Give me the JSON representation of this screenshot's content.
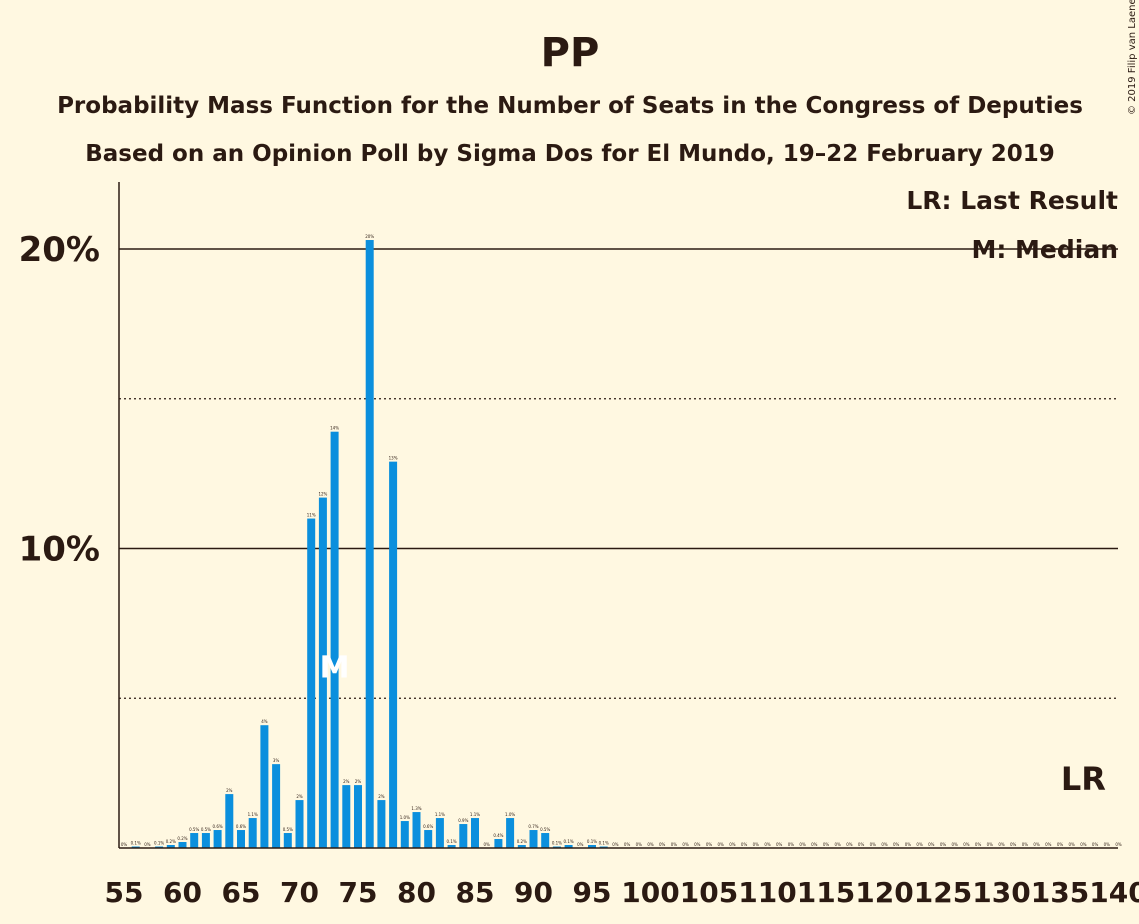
{
  "title": "PP",
  "subtitle_1": "Probability Mass Function for the Number of Seats in the Congress of Deputies",
  "subtitle_2": "Based on an Opinion Poll by Sigma Dos for El Mundo, 19–22 February 2019",
  "copyright": "© 2019 Filip van Laenen",
  "legend": {
    "last_result": "LR: Last Result",
    "median": "M: Median"
  },
  "colors": {
    "background": "#FFF8E1",
    "bar": "#0B8FDD",
    "text": "#2b1a12"
  },
  "chart_data": {
    "type": "bar",
    "xlim": [
      55,
      140
    ],
    "ylim": [
      0,
      22
    ],
    "x_ticks": [
      "55",
      "60",
      "65",
      "70",
      "75",
      "80",
      "85",
      "90",
      "95",
      "100",
      "105",
      "110",
      "115",
      "120",
      "125",
      "130",
      "135",
      "140"
    ],
    "y_ticks": [
      {
        "value": 10,
        "label": "10%",
        "style": "solid"
      },
      {
        "value": 20,
        "label": "20%",
        "style": "solid"
      }
    ],
    "y_gridlines_dotted": [
      5,
      15
    ],
    "median_seat": 73,
    "median_marker": "M",
    "last_result_seat": 137,
    "last_result_marker": "LR",
    "bars": [
      {
        "x": 55,
        "value": 0.0,
        "label": "0%"
      },
      {
        "x": 56,
        "value": 0.05,
        "label": "0.1%"
      },
      {
        "x": 57,
        "value": 0.0,
        "label": "0%"
      },
      {
        "x": 58,
        "value": 0.05,
        "label": "0.1%"
      },
      {
        "x": 59,
        "value": 0.1,
        "label": "0.2%"
      },
      {
        "x": 60,
        "value": 0.2,
        "label": "0.2%"
      },
      {
        "x": 61,
        "value": 0.5,
        "label": "0.5%"
      },
      {
        "x": 62,
        "value": 0.5,
        "label": "0.5%"
      },
      {
        "x": 63,
        "value": 0.6,
        "label": "0.6%"
      },
      {
        "x": 64,
        "value": 1.8,
        "label": "2%"
      },
      {
        "x": 65,
        "value": 0.6,
        "label": "0.6%"
      },
      {
        "x": 66,
        "value": 1.0,
        "label": "1.1%"
      },
      {
        "x": 67,
        "value": 4.1,
        "label": "4%"
      },
      {
        "x": 68,
        "value": 2.8,
        "label": "3%"
      },
      {
        "x": 69,
        "value": 0.5,
        "label": "0.5%"
      },
      {
        "x": 70,
        "value": 1.6,
        "label": "2%"
      },
      {
        "x": 71,
        "value": 11.0,
        "label": "11%"
      },
      {
        "x": 72,
        "value": 11.7,
        "label": "12%"
      },
      {
        "x": 73,
        "value": 13.9,
        "label": "14%"
      },
      {
        "x": 74,
        "value": 2.1,
        "label": "2%"
      },
      {
        "x": 75,
        "value": 2.1,
        "label": "2%"
      },
      {
        "x": 76,
        "value": 20.3,
        "label": "20%"
      },
      {
        "x": 77,
        "value": 1.6,
        "label": "2%"
      },
      {
        "x": 78,
        "value": 12.9,
        "label": "13%"
      },
      {
        "x": 79,
        "value": 0.9,
        "label": "1.0%"
      },
      {
        "x": 80,
        "value": 1.2,
        "label": "1.3%"
      },
      {
        "x": 81,
        "value": 0.6,
        "label": "0.6%"
      },
      {
        "x": 82,
        "value": 1.0,
        "label": "1.1%"
      },
      {
        "x": 83,
        "value": 0.1,
        "label": "0.1%"
      },
      {
        "x": 84,
        "value": 0.8,
        "label": "0.9%"
      },
      {
        "x": 85,
        "value": 1.0,
        "label": "1.1%"
      },
      {
        "x": 86,
        "value": 0.0,
        "label": "0%"
      },
      {
        "x": 87,
        "value": 0.3,
        "label": "0.4%"
      },
      {
        "x": 88,
        "value": 1.0,
        "label": "1.0%"
      },
      {
        "x": 89,
        "value": 0.1,
        "label": "0.2%"
      },
      {
        "x": 90,
        "value": 0.6,
        "label": "0.7%"
      },
      {
        "x": 91,
        "value": 0.5,
        "label": "0.5%"
      },
      {
        "x": 92,
        "value": 0.05,
        "label": "0.1%"
      },
      {
        "x": 93,
        "value": 0.1,
        "label": "0.1%"
      },
      {
        "x": 94,
        "value": 0.0,
        "label": "0%"
      },
      {
        "x": 95,
        "value": 0.1,
        "label": "0.1%"
      },
      {
        "x": 96,
        "value": 0.05,
        "label": "0.1%"
      },
      {
        "x": 97,
        "value": 0.0,
        "label": "0%"
      },
      {
        "x": 98,
        "value": 0.0,
        "label": "0%"
      },
      {
        "x": 99,
        "value": 0.0,
        "label": "0%"
      },
      {
        "x": 100,
        "value": 0.0,
        "label": "0%"
      },
      {
        "x": 101,
        "value": 0.0,
        "label": "0%"
      },
      {
        "x": 102,
        "value": 0.0,
        "label": "0%"
      },
      {
        "x": 103,
        "value": 0.0,
        "label": "0%"
      },
      {
        "x": 104,
        "value": 0.0,
        "label": "0%"
      },
      {
        "x": 105,
        "value": 0.0,
        "label": "0%"
      },
      {
        "x": 106,
        "value": 0.0,
        "label": "0%"
      },
      {
        "x": 107,
        "value": 0.0,
        "label": "0%"
      },
      {
        "x": 108,
        "value": 0.0,
        "label": "0%"
      },
      {
        "x": 109,
        "value": 0.0,
        "label": "0%"
      },
      {
        "x": 110,
        "value": 0.0,
        "label": "0%"
      },
      {
        "x": 111,
        "value": 0.0,
        "label": "0%"
      },
      {
        "x": 112,
        "value": 0.0,
        "label": "0%"
      },
      {
        "x": 113,
        "value": 0.0,
        "label": "0%"
      },
      {
        "x": 114,
        "value": 0.0,
        "label": "0%"
      },
      {
        "x": 115,
        "value": 0.0,
        "label": "0%"
      },
      {
        "x": 116,
        "value": 0.0,
        "label": "0%"
      },
      {
        "x": 117,
        "value": 0.0,
        "label": "0%"
      },
      {
        "x": 118,
        "value": 0.0,
        "label": "0%"
      },
      {
        "x": 119,
        "value": 0.0,
        "label": "0%"
      },
      {
        "x": 120,
        "value": 0.0,
        "label": "0%"
      },
      {
        "x": 121,
        "value": 0.0,
        "label": "0%"
      },
      {
        "x": 122,
        "value": 0.0,
        "label": "0%"
      },
      {
        "x": 123,
        "value": 0.0,
        "label": "0%"
      },
      {
        "x": 124,
        "value": 0.0,
        "label": "0%"
      },
      {
        "x": 125,
        "value": 0.0,
        "label": "0%"
      },
      {
        "x": 126,
        "value": 0.0,
        "label": "0%"
      },
      {
        "x": 127,
        "value": 0.0,
        "label": "0%"
      },
      {
        "x": 128,
        "value": 0.0,
        "label": "0%"
      },
      {
        "x": 129,
        "value": 0.0,
        "label": "0%"
      },
      {
        "x": 130,
        "value": 0.0,
        "label": "0%"
      },
      {
        "x": 131,
        "value": 0.0,
        "label": "0%"
      },
      {
        "x": 132,
        "value": 0.0,
        "label": "0%"
      },
      {
        "x": 133,
        "value": 0.0,
        "label": "0%"
      },
      {
        "x": 134,
        "value": 0.0,
        "label": "0%"
      },
      {
        "x": 135,
        "value": 0.0,
        "label": "0%"
      },
      {
        "x": 136,
        "value": 0.0,
        "label": "0%"
      },
      {
        "x": 137,
        "value": 0.0,
        "label": "0%"
      },
      {
        "x": 138,
        "value": 0.0,
        "label": "0%"
      },
      {
        "x": 139,
        "value": 0.0,
        "label": "0%"
      },
      {
        "x": 140,
        "value": 0.0,
        "label": "0%"
      }
    ]
  }
}
